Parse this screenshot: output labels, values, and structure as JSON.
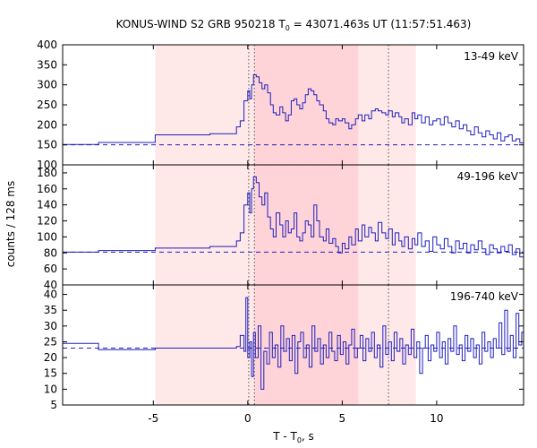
{
  "chart_data": {
    "type": "line",
    "title": "KONUS-WIND S2 GRB 950218 T",
    "title_sub": "0",
    "title_rest": " = 43071.463s UT (11:57:51.463)",
    "xlabel": "T - T",
    "xlabel_sub": "0",
    "xlabel_rest": ", s",
    "ylabel": "counts / 128 ms",
    "xlim": [
      -9.8,
      14.6
    ],
    "x_ticks": [
      -5,
      0,
      5,
      10
    ],
    "x_tick_labels": [
      "-5",
      "0",
      "5",
      "10"
    ],
    "grid": false,
    "line_color": "#1f1fbf",
    "shade_light_color": "#ffe8e8",
    "shade_dark_color": "#ffd4d8",
    "shade_light": [
      -4.9,
      8.9
    ],
    "shade_dark": [
      0.35,
      5.85
    ],
    "vlines": [
      0.05,
      0.35,
      7.45
    ],
    "panels": [
      {
        "label": "13-49 keV",
        "ylim": [
          100,
          400
        ],
        "y_ticks": [
          100,
          150,
          200,
          250,
          300,
          350,
          400
        ],
        "y_tick_labels": [
          "100",
          "150",
          "200",
          "250",
          "300",
          "350",
          "400"
        ],
        "background_level": 150,
        "steps": [
          [
            -9.8,
            151
          ],
          [
            -7.9,
            156
          ],
          [
            -4.9,
            175
          ],
          [
            -2.0,
            178
          ],
          [
            -0.6,
            195
          ],
          [
            -0.4,
            210
          ],
          [
            -0.2,
            260
          ],
          [
            0.0,
            285
          ],
          [
            0.1,
            265
          ],
          [
            0.2,
            300
          ],
          [
            0.3,
            325
          ],
          [
            0.45,
            320
          ],
          [
            0.6,
            305
          ],
          [
            0.75,
            290
          ],
          [
            0.9,
            300
          ],
          [
            1.05,
            280
          ],
          [
            1.2,
            250
          ],
          [
            1.35,
            230
          ],
          [
            1.5,
            225
          ],
          [
            1.7,
            245
          ],
          [
            1.85,
            230
          ],
          [
            2.0,
            210
          ],
          [
            2.15,
            225
          ],
          [
            2.3,
            260
          ],
          [
            2.45,
            265
          ],
          [
            2.6,
            250
          ],
          [
            2.75,
            240
          ],
          [
            2.9,
            255
          ],
          [
            3.05,
            275
          ],
          [
            3.2,
            290
          ],
          [
            3.35,
            285
          ],
          [
            3.5,
            275
          ],
          [
            3.65,
            260
          ],
          [
            3.8,
            250
          ],
          [
            4.0,
            235
          ],
          [
            4.15,
            215
          ],
          [
            4.3,
            205
          ],
          [
            4.5,
            200
          ],
          [
            4.65,
            215
          ],
          [
            4.8,
            210
          ],
          [
            5.0,
            215
          ],
          [
            5.15,
            205
          ],
          [
            5.35,
            190
          ],
          [
            5.5,
            200
          ],
          [
            5.7,
            215
          ],
          [
            5.85,
            225
          ],
          [
            6.05,
            210
          ],
          [
            6.2,
            225
          ],
          [
            6.4,
            215
          ],
          [
            6.55,
            235
          ],
          [
            6.75,
            240
          ],
          [
            6.9,
            235
          ],
          [
            7.1,
            230
          ],
          [
            7.3,
            225
          ],
          [
            7.45,
            235
          ],
          [
            7.65,
            220
          ],
          [
            7.8,
            230
          ],
          [
            8.0,
            220
          ],
          [
            8.15,
            205
          ],
          [
            8.3,
            215
          ],
          [
            8.5,
            200
          ],
          [
            8.7,
            230
          ],
          [
            8.85,
            215
          ],
          [
            9.0,
            225
          ],
          [
            9.2,
            205
          ],
          [
            9.4,
            220
          ],
          [
            9.6,
            200
          ],
          [
            9.8,
            210
          ],
          [
            10.0,
            215
          ],
          [
            10.2,
            200
          ],
          [
            10.4,
            220
          ],
          [
            10.6,
            205
          ],
          [
            10.8,
            195
          ],
          [
            11.0,
            210
          ],
          [
            11.2,
            190
          ],
          [
            11.4,
            200
          ],
          [
            11.6,
            185
          ],
          [
            11.8,
            175
          ],
          [
            12.0,
            195
          ],
          [
            12.2,
            180
          ],
          [
            12.4,
            170
          ],
          [
            12.6,
            185
          ],
          [
            12.8,
            175
          ],
          [
            13.0,
            165
          ],
          [
            13.2,
            180
          ],
          [
            13.4,
            160
          ],
          [
            13.6,
            170
          ],
          [
            13.8,
            175
          ],
          [
            14.0,
            160
          ],
          [
            14.2,
            165
          ],
          [
            14.4,
            155
          ],
          [
            14.6,
            155
          ]
        ]
      },
      {
        "label": "49-196 keV",
        "ylim": [
          40,
          190
        ],
        "y_ticks": [
          40,
          60,
          80,
          100,
          120,
          140,
          160,
          180
        ],
        "y_tick_labels": [
          "40",
          "60",
          "80",
          "100",
          "120",
          "140",
          "160",
          "180"
        ],
        "background_level": 81,
        "steps": [
          [
            -9.8,
            81
          ],
          [
            -7.9,
            83
          ],
          [
            -4.9,
            86
          ],
          [
            -2.0,
            88
          ],
          [
            -0.6,
            95
          ],
          [
            -0.4,
            105
          ],
          [
            -0.2,
            140
          ],
          [
            0.0,
            155
          ],
          [
            0.1,
            130
          ],
          [
            0.2,
            160
          ],
          [
            0.3,
            175
          ],
          [
            0.45,
            168
          ],
          [
            0.6,
            150
          ],
          [
            0.75,
            140
          ],
          [
            0.9,
            155
          ],
          [
            1.05,
            125
          ],
          [
            1.2,
            110
          ],
          [
            1.35,
            100
          ],
          [
            1.5,
            130
          ],
          [
            1.7,
            115
          ],
          [
            1.85,
            100
          ],
          [
            2.0,
            120
          ],
          [
            2.15,
            105
          ],
          [
            2.3,
            110
          ],
          [
            2.45,
            130
          ],
          [
            2.6,
            100
          ],
          [
            2.75,
            95
          ],
          [
            2.9,
            105
          ],
          [
            3.05,
            120
          ],
          [
            3.2,
            115
          ],
          [
            3.35,
            100
          ],
          [
            3.5,
            140
          ],
          [
            3.65,
            120
          ],
          [
            3.8,
            100
          ],
          [
            4.0,
            95
          ],
          [
            4.15,
            110
          ],
          [
            4.3,
            92
          ],
          [
            4.5,
            98
          ],
          [
            4.65,
            88
          ],
          [
            4.8,
            80
          ],
          [
            5.0,
            92
          ],
          [
            5.15,
            85
          ],
          [
            5.35,
            100
          ],
          [
            5.5,
            90
          ],
          [
            5.7,
            110
          ],
          [
            5.85,
            95
          ],
          [
            6.05,
            115
          ],
          [
            6.2,
            100
          ],
          [
            6.4,
            112
          ],
          [
            6.55,
            105
          ],
          [
            6.75,
            95
          ],
          [
            6.9,
            118
          ],
          [
            7.1,
            105
          ],
          [
            7.3,
            98
          ],
          [
            7.45,
            110
          ],
          [
            7.65,
            90
          ],
          [
            7.8,
            105
          ],
          [
            8.0,
            95
          ],
          [
            8.15,
            88
          ],
          [
            8.3,
            100
          ],
          [
            8.5,
            85
          ],
          [
            8.7,
            98
          ],
          [
            8.85,
            90
          ],
          [
            9.0,
            105
          ],
          [
            9.2,
            88
          ],
          [
            9.4,
            95
          ],
          [
            9.6,
            82
          ],
          [
            9.8,
            100
          ],
          [
            10.0,
            90
          ],
          [
            10.2,
            85
          ],
          [
            10.4,
            98
          ],
          [
            10.6,
            88
          ],
          [
            10.8,
            80
          ],
          [
            11.0,
            95
          ],
          [
            11.2,
            85
          ],
          [
            11.4,
            92
          ],
          [
            11.6,
            80
          ],
          [
            11.8,
            90
          ],
          [
            12.0,
            84
          ],
          [
            12.2,
            95
          ],
          [
            12.4,
            85
          ],
          [
            12.6,
            78
          ],
          [
            12.8,
            90
          ],
          [
            13.0,
            85
          ],
          [
            13.2,
            80
          ],
          [
            13.4,
            88
          ],
          [
            13.6,
            82
          ],
          [
            13.8,
            90
          ],
          [
            14.0,
            78
          ],
          [
            14.2,
            85
          ],
          [
            14.4,
            75
          ],
          [
            14.6,
            75
          ]
        ]
      },
      {
        "label": "196-740 keV",
        "ylim": [
          5,
          43
        ],
        "y_ticks": [
          5,
          10,
          15,
          20,
          25,
          30,
          35,
          40
        ],
        "y_tick_labels": [
          "5",
          "10",
          "15",
          "20",
          "25",
          "30",
          "35",
          "40"
        ],
        "background_level": 23,
        "steps": [
          [
            -9.8,
            24.5
          ],
          [
            -7.9,
            22.5
          ],
          [
            -4.9,
            23
          ],
          [
            -2.0,
            23
          ],
          [
            -0.6,
            23.5
          ],
          [
            -0.4,
            27
          ],
          [
            -0.2,
            22
          ],
          [
            -0.1,
            39
          ],
          [
            0.0,
            20
          ],
          [
            0.1,
            25
          ],
          [
            0.2,
            14
          ],
          [
            0.3,
            28
          ],
          [
            0.4,
            20
          ],
          [
            0.55,
            30
          ],
          [
            0.7,
            10
          ],
          [
            0.85,
            22
          ],
          [
            1.0,
            18
          ],
          [
            1.15,
            28
          ],
          [
            1.3,
            20
          ],
          [
            1.45,
            24
          ],
          [
            1.6,
            17
          ],
          [
            1.75,
            30
          ],
          [
            1.9,
            22
          ],
          [
            2.05,
            26
          ],
          [
            2.2,
            19
          ],
          [
            2.35,
            27
          ],
          [
            2.5,
            15
          ],
          [
            2.65,
            25
          ],
          [
            2.8,
            28
          ],
          [
            2.95,
            20
          ],
          [
            3.1,
            24
          ],
          [
            3.25,
            17
          ],
          [
            3.4,
            30
          ],
          [
            3.55,
            22
          ],
          [
            3.7,
            26
          ],
          [
            3.85,
            18
          ],
          [
            4.0,
            24
          ],
          [
            4.15,
            20
          ],
          [
            4.3,
            28
          ],
          [
            4.45,
            22
          ],
          [
            4.6,
            19
          ],
          [
            4.75,
            27
          ],
          [
            4.9,
            21
          ],
          [
            5.05,
            25
          ],
          [
            5.2,
            18
          ],
          [
            5.35,
            24
          ],
          [
            5.5,
            29
          ],
          [
            5.65,
            20
          ],
          [
            5.8,
            23
          ],
          [
            5.95,
            27
          ],
          [
            6.1,
            19
          ],
          [
            6.25,
            26
          ],
          [
            6.4,
            22
          ],
          [
            6.55,
            28
          ],
          [
            6.7,
            20
          ],
          [
            6.85,
            24
          ],
          [
            7.0,
            17
          ],
          [
            7.15,
            30
          ],
          [
            7.3,
            21
          ],
          [
            7.45,
            25
          ],
          [
            7.6,
            19
          ],
          [
            7.75,
            28
          ],
          [
            7.9,
            22
          ],
          [
            8.05,
            26
          ],
          [
            8.2,
            18
          ],
          [
            8.35,
            24
          ],
          [
            8.5,
            21
          ],
          [
            8.65,
            29
          ],
          [
            8.8,
            20
          ],
          [
            8.95,
            25
          ],
          [
            9.1,
            15
          ],
          [
            9.25,
            23
          ],
          [
            9.4,
            27
          ],
          [
            9.55,
            19
          ],
          [
            9.7,
            24
          ],
          [
            9.85,
            22
          ],
          [
            10.0,
            28
          ],
          [
            10.15,
            20
          ],
          [
            10.3,
            25
          ],
          [
            10.45,
            18
          ],
          [
            10.6,
            26
          ],
          [
            10.75,
            22
          ],
          [
            10.9,
            30
          ],
          [
            11.05,
            21
          ],
          [
            11.2,
            24
          ],
          [
            11.35,
            19
          ],
          [
            11.5,
            27
          ],
          [
            11.65,
            22
          ],
          [
            11.8,
            26
          ],
          [
            11.95,
            20
          ],
          [
            12.1,
            24
          ],
          [
            12.25,
            18
          ],
          [
            12.4,
            28
          ],
          [
            12.55,
            22
          ],
          [
            12.7,
            25
          ],
          [
            12.85,
            20
          ],
          [
            13.0,
            26
          ],
          [
            13.15,
            23
          ],
          [
            13.3,
            31
          ],
          [
            13.45,
            21
          ],
          [
            13.6,
            35
          ],
          [
            13.75,
            22
          ],
          [
            13.9,
            27
          ],
          [
            14.05,
            20
          ],
          [
            14.2,
            34
          ],
          [
            14.35,
            24
          ],
          [
            14.5,
            28
          ],
          [
            14.6,
            28
          ]
        ]
      }
    ]
  }
}
